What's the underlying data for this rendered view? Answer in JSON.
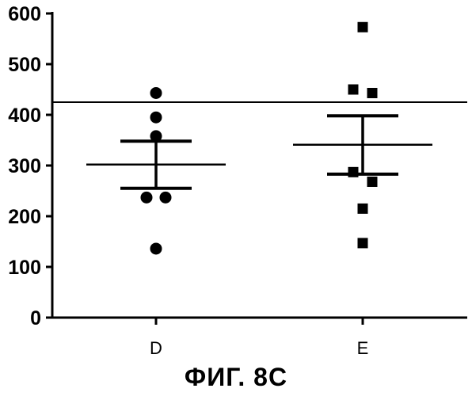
{
  "caption": "ФИГ. 8С",
  "chart_data": {
    "type": "scatter",
    "title": "",
    "xlabel": "",
    "ylabel": "",
    "categories": [
      "D",
      "E"
    ],
    "ylim": [
      0,
      600
    ],
    "yticks": [
      0,
      100,
      200,
      300,
      400,
      500,
      600
    ],
    "grid": false,
    "reference_line": 425,
    "series": [
      {
        "category": "D",
        "marker": "circle",
        "points": [
          443,
          395,
          358,
          237,
          237,
          136
        ],
        "mean": 302,
        "error": [
          255,
          348
        ]
      },
      {
        "category": "E",
        "marker": "square",
        "points": [
          573,
          450,
          443,
          287,
          268,
          215,
          147
        ],
        "mean": 341,
        "error": [
          283,
          398
        ]
      }
    ]
  }
}
